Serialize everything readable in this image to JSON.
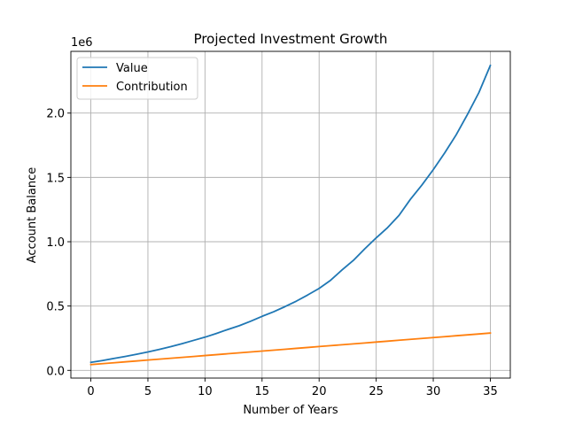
{
  "chart_data": {
    "type": "line",
    "title": "Projected Investment Growth",
    "xlabel": "Number of Years",
    "ylabel": "Account Balance",
    "y_scale_label": "1e6",
    "xlim": [
      -1.75,
      36.75
    ],
    "ylim": [
      -60000,
      2480000
    ],
    "xticks": [
      0,
      5,
      10,
      15,
      20,
      25,
      30,
      35
    ],
    "yticks": [
      0,
      500000,
      1000000,
      1500000,
      2000000
    ],
    "ytick_labels": [
      "0.0",
      "0.5",
      "1.0",
      "1.5",
      "2.0"
    ],
    "grid": true,
    "legend_position": "top-left",
    "x": [
      0,
      1,
      2,
      3,
      4,
      5,
      6,
      7,
      8,
      9,
      10,
      11,
      12,
      13,
      14,
      15,
      16,
      17,
      18,
      19,
      20,
      21,
      22,
      23,
      24,
      25,
      26,
      27,
      28,
      29,
      30,
      31,
      32,
      33,
      34,
      35
    ],
    "series": [
      {
        "name": "Value",
        "color": "#1f77b4",
        "values": [
          62000,
          76000,
          92000,
          108000,
          125000,
          143000,
          163000,
          184000,
          208000,
          233000,
          258000,
          287000,
          318000,
          347000,
          382000,
          420000,
          455000,
          495000,
          538000,
          586000,
          637000,
          700000,
          780000,
          855000,
          945000,
          1030000,
          1110000,
          1205000,
          1330000,
          1440000,
          1560000,
          1690000,
          1830000,
          1990000,
          2160000,
          2370000
        ]
      },
      {
        "name": "Contribution",
        "color": "#ff7f0e",
        "values": [
          45000,
          52000,
          59000,
          66000,
          73000,
          80000,
          87000,
          94000,
          101000,
          108000,
          115000,
          122000,
          129000,
          136000,
          143000,
          150000,
          157000,
          164000,
          171000,
          178000,
          185000,
          192000,
          199000,
          206000,
          213000,
          220000,
          227000,
          234000,
          241000,
          248000,
          255000,
          262000,
          269000,
          276000,
          283000,
          290000
        ]
      }
    ]
  }
}
